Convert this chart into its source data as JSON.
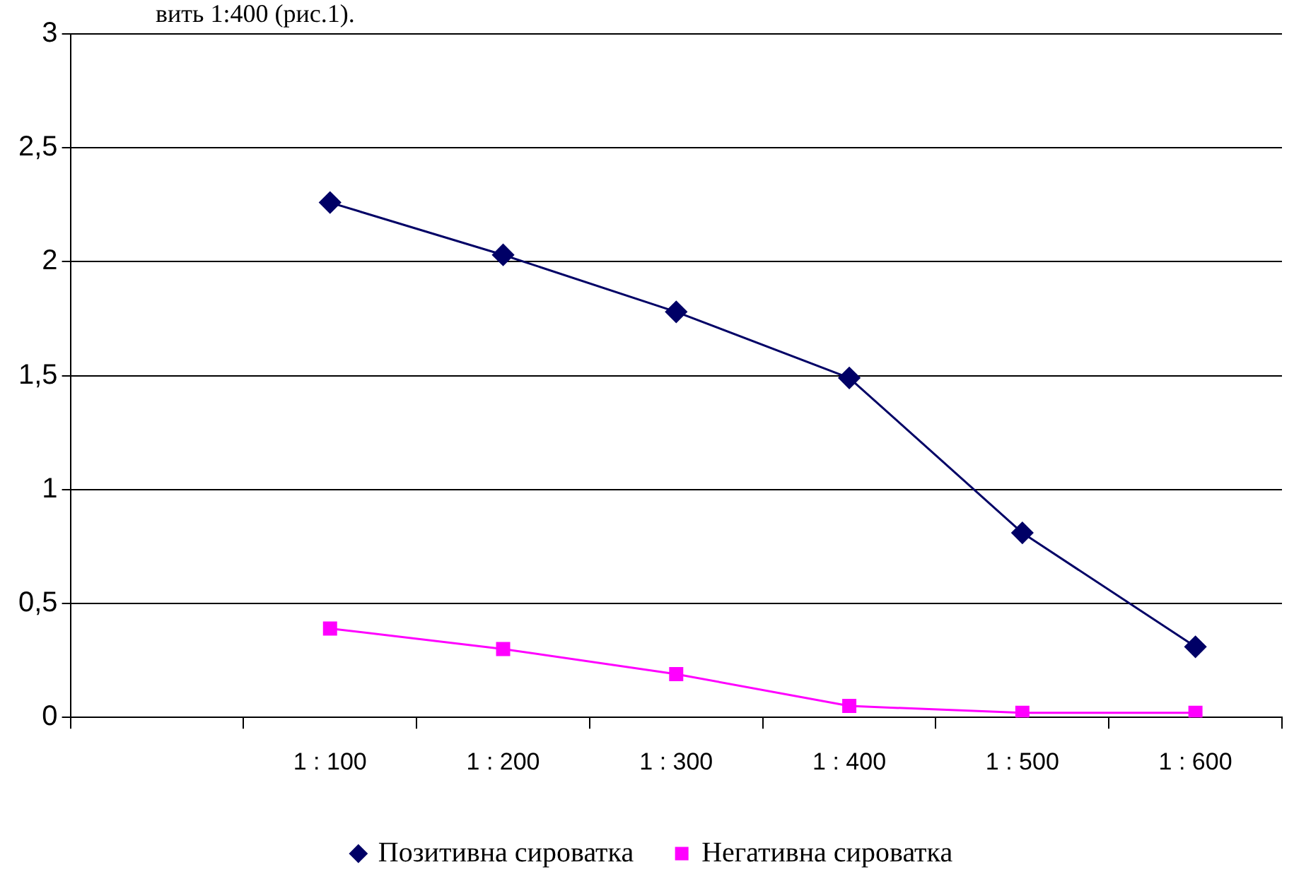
{
  "chart_data": {
    "type": "line",
    "categories": [
      null,
      "1 : 100",
      "1 : 200",
      "1 : 300",
      "1 : 400",
      "1 : 500",
      "1 : 600"
    ],
    "series": [
      {
        "name": "Позитивна сироватка",
        "color": "#000066",
        "marker": "diamond",
        "values": [
          null,
          2.26,
          2.03,
          1.78,
          1.49,
          0.81,
          0.31
        ]
      },
      {
        "name": "Негативна сироватка",
        "color": "#ff00ff",
        "marker": "square",
        "values": [
          null,
          0.39,
          0.3,
          0.19,
          0.05,
          0.02,
          0.02
        ]
      }
    ],
    "ylim": [
      0,
      3
    ],
    "yticks": [
      0,
      {
        "value": 0.5,
        "label": "0,5"
      },
      1,
      {
        "value": 1.5,
        "label": "1,5"
      },
      2,
      {
        "value": 2.5,
        "label": "2,5"
      },
      3
    ],
    "grid": "y",
    "legend": "bottom",
    "line_style": "solid",
    "annotations": [
      "вить 1:400 (рис.1)."
    ]
  }
}
